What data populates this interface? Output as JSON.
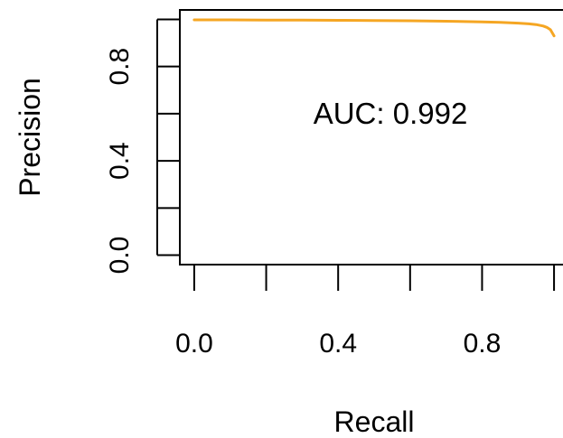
{
  "chart_data": {
    "type": "line",
    "xlabel": "Recall",
    "ylabel": "Precision",
    "xlim": [
      -0.04,
      1.04
    ],
    "ylim": [
      -0.04,
      1.04
    ],
    "x_ticks": [
      0.0,
      0.2,
      0.4,
      0.6,
      0.8,
      1.0
    ],
    "x_tick_labels": [
      "0.0",
      "",
      "0.4",
      "",
      "0.8",
      ""
    ],
    "y_ticks": [
      0.0,
      0.2,
      0.4,
      0.6,
      0.8,
      1.0
    ],
    "y_tick_labels": [
      "0.0",
      "",
      "0.4",
      "",
      "0.8",
      ""
    ],
    "grid": false,
    "annotation": "AUC: 0.992",
    "series_color": "#F5A623",
    "series": [
      {
        "x": [
          0.0,
          0.1,
          0.2,
          0.3,
          0.4,
          0.5,
          0.6,
          0.7,
          0.8,
          0.85,
          0.9,
          0.93,
          0.95,
          0.97,
          0.98,
          0.99,
          1.0
        ],
        "values": [
          0.998,
          0.998,
          0.997,
          0.997,
          0.996,
          0.995,
          0.994,
          0.992,
          0.989,
          0.987,
          0.984,
          0.981,
          0.978,
          0.972,
          0.966,
          0.956,
          0.93
        ]
      }
    ]
  }
}
